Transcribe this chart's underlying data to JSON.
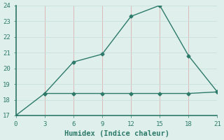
{
  "xlabel": "Humidex (Indice chaleur)",
  "line1_x": [
    0,
    3,
    6,
    9,
    12,
    15,
    18,
    21
  ],
  "line1_y": [
    17.0,
    18.4,
    20.4,
    20.9,
    23.3,
    24.0,
    20.8,
    18.5
  ],
  "line2_x": [
    3,
    6,
    9,
    12,
    15,
    18,
    21
  ],
  "line2_y": [
    18.4,
    18.4,
    18.4,
    18.4,
    18.4,
    18.4,
    18.5
  ],
  "line_color": "#2d7a6a",
  "background_color": "#dff0ec",
  "vert_grid_color": "#ddb8b8",
  "horiz_grid_color": "#c8e0dc",
  "spine_color": "#2d7a6a",
  "tick_color": "#2d7a6a",
  "xlim": [
    0,
    21
  ],
  "ylim": [
    17,
    24
  ],
  "xticks": [
    0,
    3,
    6,
    9,
    12,
    15,
    18,
    21
  ],
  "yticks": [
    17,
    18,
    19,
    20,
    21,
    22,
    23,
    24
  ],
  "tick_fontsize": 6.5,
  "xlabel_fontsize": 7.5,
  "marker": "D",
  "markersize": 2.5,
  "linewidth": 1.0
}
